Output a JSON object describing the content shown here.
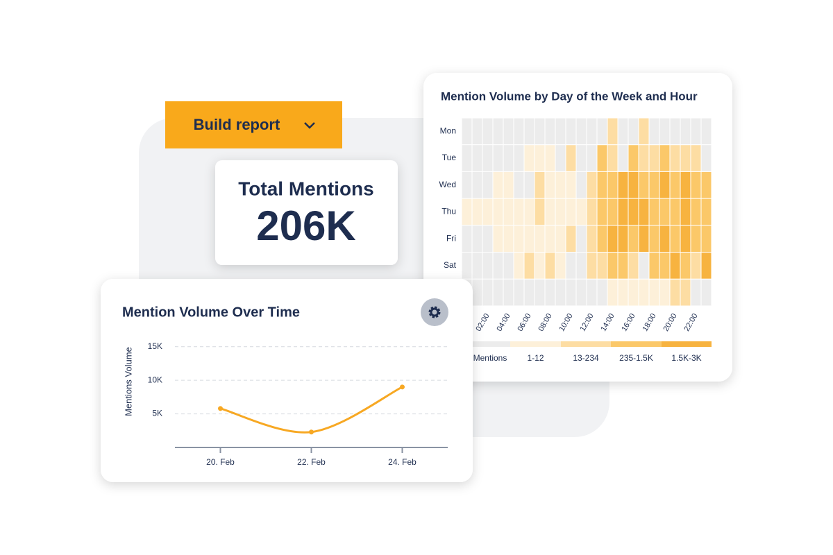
{
  "button": {
    "label": "Build report"
  },
  "kpi": {
    "label": "Total Mentions",
    "value": "206K"
  },
  "chart_data": [
    {
      "type": "line",
      "title": "Mention Volume Over Time",
      "ylabel": "Mentions Volume",
      "categories": [
        "20. Feb",
        "22. Feb",
        "24. Feb"
      ],
      "values": [
        5800,
        2300,
        9000
      ],
      "color": "#f7a823",
      "ylim": [
        0,
        16000
      ],
      "yticks": [
        {
          "value": 5000,
          "label": "5K"
        },
        {
          "value": 10000,
          "label": "10K"
        },
        {
          "value": 15000,
          "label": "15K"
        }
      ],
      "grid": true
    },
    {
      "type": "heatmap",
      "title": "Mention Volume by Day of the Week and Hour",
      "x": [
        null,
        null,
        "02:00",
        null,
        "04:00",
        null,
        "06:00",
        null,
        "08:00",
        null,
        "10:00",
        null,
        "12:00",
        null,
        "14:00",
        null,
        "16:00",
        null,
        "18:00",
        null,
        "20:00",
        null,
        "22:00",
        null
      ],
      "y": [
        "Mon",
        "Tue",
        "Wed",
        "Thu",
        "Fri",
        "Sat",
        null
      ],
      "values": [
        [
          0,
          0,
          0,
          0,
          0,
          0,
          0,
          0,
          0,
          0,
          0,
          0,
          0,
          0,
          2,
          0,
          0,
          2,
          0,
          0,
          0,
          0,
          0,
          0
        ],
        [
          0,
          0,
          0,
          0,
          0,
          0,
          1,
          1,
          1,
          0,
          2,
          0,
          0,
          3,
          2,
          0,
          3,
          2,
          2,
          3,
          2,
          2,
          2,
          0
        ],
        [
          0,
          0,
          0,
          1,
          1,
          0,
          0,
          2,
          1,
          1,
          1,
          0,
          2,
          3,
          3,
          4,
          4,
          3,
          3,
          4,
          3,
          4,
          3,
          3
        ],
        [
          1,
          1,
          1,
          1,
          1,
          1,
          1,
          2,
          1,
          1,
          1,
          1,
          2,
          3,
          3,
          4,
          4,
          4,
          3,
          3,
          3,
          4,
          3,
          3
        ],
        [
          0,
          0,
          0,
          1,
          1,
          1,
          1,
          1,
          1,
          1,
          2,
          0,
          2,
          3,
          4,
          4,
          3,
          4,
          3,
          4,
          3,
          4,
          3,
          3
        ],
        [
          0,
          0,
          0,
          0,
          0,
          1,
          2,
          1,
          2,
          1,
          0,
          0,
          2,
          2,
          3,
          3,
          2,
          0,
          3,
          3,
          4,
          3,
          2,
          4
        ],
        [
          0,
          0,
          0,
          0,
          0,
          0,
          0,
          0,
          0,
          0,
          0,
          0,
          0,
          0,
          1,
          1,
          1,
          1,
          1,
          1,
          2,
          2,
          0,
          0
        ]
      ],
      "legend": [
        {
          "label": "Mentions",
          "color": "#ececec"
        },
        {
          "label": "1-12",
          "color": "#fdf0d9"
        },
        {
          "label": "13-234",
          "color": "#fddda3"
        },
        {
          "label": "235-1.5K",
          "color": "#fbc869"
        },
        {
          "label": "1.5K-3K",
          "color": "#f7b340"
        }
      ]
    }
  ]
}
